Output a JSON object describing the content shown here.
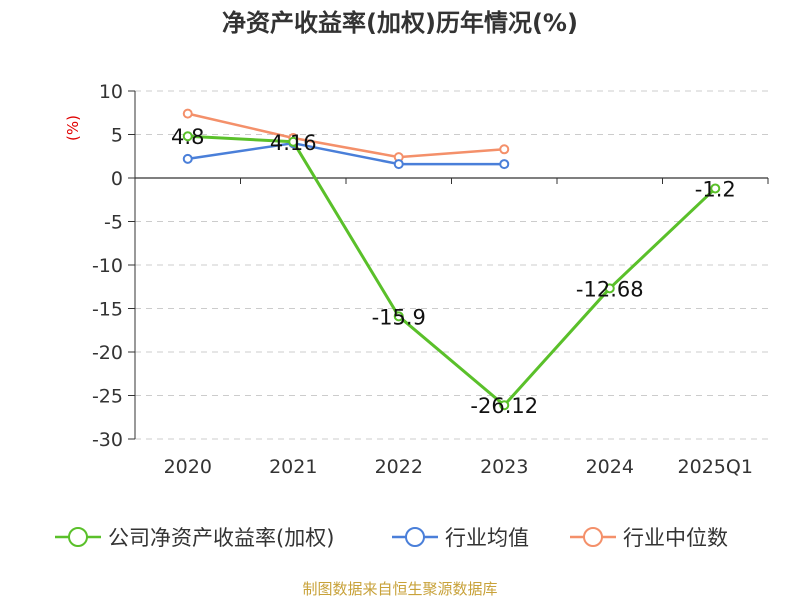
{
  "chart_data": {
    "type": "line",
    "title": "净资产收益率(加权)历年情况(%)",
    "ylabel": "(%)",
    "categories": [
      "2020",
      "2021",
      "2022",
      "2023",
      "2024",
      "2025Q1"
    ],
    "ylim": [
      -30,
      10
    ],
    "yticks": [
      "10",
      "5",
      "0",
      "-5",
      "-10",
      "-15",
      "-20",
      "-25",
      "-30"
    ],
    "grid": true,
    "legend_position": "bottom",
    "series": [
      {
        "name": "公司净资产收益率(加权)",
        "color": "#5ac02a",
        "values": [
          4.8,
          4.16,
          -15.9,
          -26.12,
          -12.68,
          -1.2
        ],
        "labels": [
          "4.8",
          "4.16",
          "-15.9",
          "-26.12",
          "-12.68",
          "-1.2"
        ]
      },
      {
        "name": "行业均值",
        "color": "#4a7fd9",
        "values": [
          2.2,
          4.0,
          1.6,
          1.6,
          null,
          null
        ]
      },
      {
        "name": "行业中位数",
        "color": "#f4906a",
        "values": [
          7.4,
          4.6,
          2.4,
          3.3,
          null,
          null
        ]
      }
    ],
    "source": "制图数据来自恒生聚源数据库"
  }
}
